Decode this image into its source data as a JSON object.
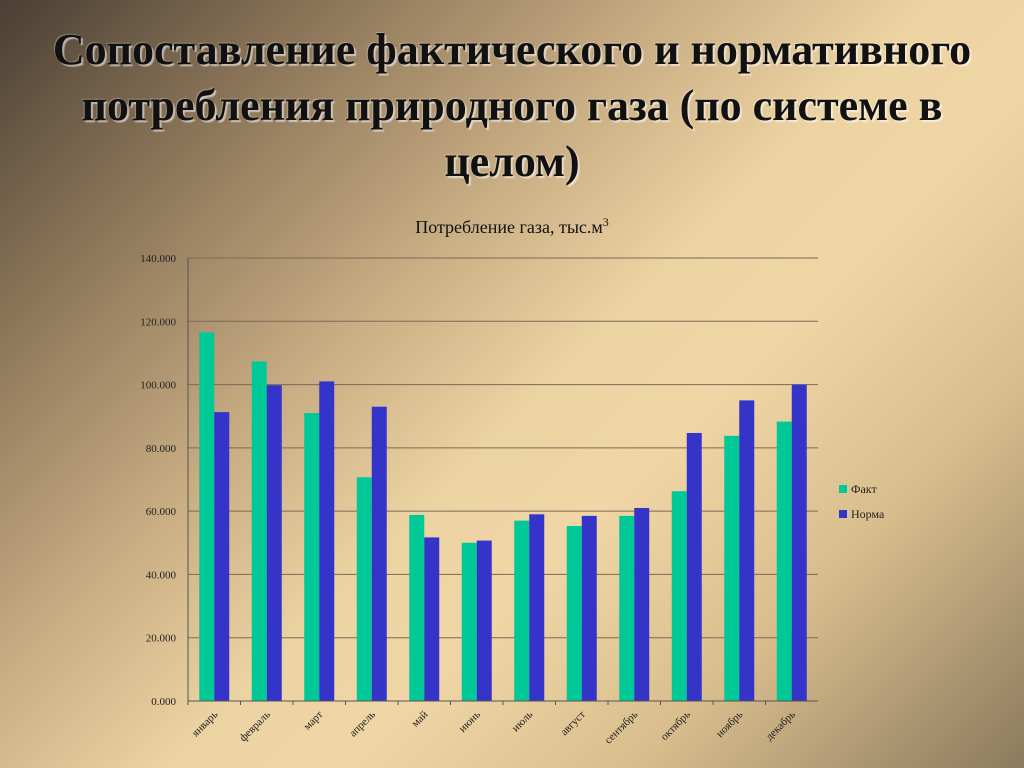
{
  "slide": {
    "title_lines": [
      "Сопоставление фактического и нормативного",
      "потребления природного газа (по системе в",
      "целом)"
    ]
  },
  "colors": {
    "fact": "#00c896",
    "norm": "#3434c8",
    "grid": "#7a6a55"
  },
  "chart_data": {
    "type": "bar",
    "title": "Потребление газа, тыс.м",
    "title_superscript": "3",
    "categories": [
      "январь",
      "февраль",
      "март",
      "апрель",
      "май",
      "июнь",
      "июль",
      "август",
      "сентябрь",
      "октябрь",
      "ноябрь",
      "декабрь"
    ],
    "series": [
      {
        "name": "Факт",
        "values": [
          116.5,
          107.3,
          91.0,
          70.7,
          58.8,
          50.0,
          57.0,
          55.3,
          58.5,
          66.3,
          83.8,
          88.3
        ]
      },
      {
        "name": "Норма",
        "values": [
          91.3,
          99.8,
          101.0,
          93.0,
          51.7,
          50.7,
          59.0,
          58.5,
          61.0,
          84.7,
          95.0,
          100.0
        ]
      }
    ],
    "ylim": [
      0,
      140
    ],
    "yticks": [
      "0.000",
      "20.000",
      "40.000",
      "60.000",
      "80.000",
      "100.000",
      "120.000",
      "140.000"
    ],
    "grid": true,
    "legend_position": "right"
  }
}
